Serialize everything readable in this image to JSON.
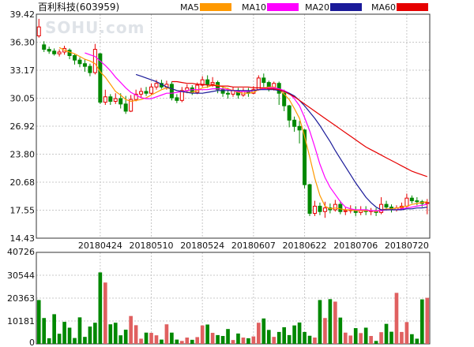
{
  "stock": {
    "name": "百利科技",
    "code": "(603959)"
  },
  "watermark": "SOHU.com",
  "legend": [
    {
      "label": "MA5",
      "color": "#ff9900"
    },
    {
      "label": "MA10",
      "color": "#ff00ff"
    },
    {
      "label": "MA20",
      "color": "#1a1a99"
    },
    {
      "label": "MA60",
      "color": "#e60000"
    }
  ],
  "colors": {
    "up": "#e60000",
    "down": "#008800",
    "grid": "#c8c8c8",
    "axis": "#333333",
    "vol_up": "#e06060",
    "vol_down": "#008800"
  },
  "chart_data": [
    {
      "type": "candlestick",
      "ylim": [
        14.43,
        39.42
      ],
      "y_ticks": [
        "39.42",
        "36.30",
        "33.17",
        "30.05",
        "26.92",
        "23.80",
        "20.68",
        "17.55",
        "14.43"
      ],
      "x_tick_labels": [
        {
          "label": "20180424",
          "index": 12
        },
        {
          "label": "20180510",
          "index": 22
        },
        {
          "label": "20180524",
          "index": 32
        },
        {
          "label": "20180607",
          "index": 42
        },
        {
          "label": "20180622",
          "index": 52
        },
        {
          "label": "20180706",
          "index": 62
        },
        {
          "label": "20180720",
          "index": 72
        }
      ],
      "candles": [
        [
          37.0,
          38.0,
          38.9,
          36.8
        ],
        [
          36.0,
          35.5,
          36.4,
          35.2
        ],
        [
          35.5,
          35.3,
          35.8,
          35.0
        ],
        [
          35.3,
          35.0,
          35.6,
          34.8
        ],
        [
          35.0,
          35.2,
          35.5,
          34.7
        ],
        [
          35.2,
          35.6,
          35.9,
          34.9
        ],
        [
          35.4,
          34.8,
          35.6,
          34.4
        ],
        [
          34.8,
          34.3,
          35.0,
          33.8
        ],
        [
          34.3,
          33.9,
          34.6,
          33.5
        ],
        [
          33.9,
          33.6,
          34.4,
          33.0
        ],
        [
          33.6,
          32.9,
          33.9,
          32.5
        ],
        [
          32.9,
          35.5,
          36.1,
          32.7
        ],
        [
          35.0,
          29.6,
          35.1,
          29.4
        ],
        [
          29.6,
          30.2,
          31.0,
          29.3
        ],
        [
          30.2,
          29.7,
          30.5,
          29.3
        ],
        [
          29.7,
          30.0,
          30.6,
          29.4
        ],
        [
          30.0,
          29.4,
          30.6,
          28.9
        ],
        [
          29.4,
          28.6,
          30.3,
          28.3
        ],
        [
          28.6,
          29.9,
          30.4,
          28.5
        ],
        [
          29.9,
          30.5,
          31.0,
          29.7
        ],
        [
          30.5,
          30.8,
          31.2,
          30.1
        ],
        [
          30.8,
          30.6,
          31.3,
          30.3
        ],
        [
          30.6,
          31.3,
          31.7,
          30.4
        ],
        [
          31.3,
          31.7,
          32.1,
          31.0
        ],
        [
          31.7,
          31.3,
          32.1,
          31.1
        ],
        [
          31.3,
          31.6,
          32.0,
          31.0
        ],
        [
          31.6,
          30.1,
          31.9,
          29.8
        ],
        [
          30.1,
          29.8,
          30.5,
          29.5
        ],
        [
          29.8,
          30.9,
          31.3,
          29.6
        ],
        [
          30.9,
          31.2,
          31.6,
          30.6
        ],
        [
          31.2,
          30.7,
          31.5,
          30.4
        ],
        [
          30.7,
          31.5,
          31.8,
          30.5
        ],
        [
          31.5,
          32.1,
          32.5,
          31.3
        ],
        [
          32.1,
          31.6,
          32.6,
          31.2
        ],
        [
          31.6,
          31.8,
          32.4,
          31.3
        ],
        [
          31.8,
          31.0,
          32.0,
          30.6
        ],
        [
          31.0,
          30.6,
          31.4,
          30.2
        ],
        [
          30.6,
          30.5,
          31.2,
          30.0
        ],
        [
          30.5,
          30.9,
          31.3,
          30.2
        ],
        [
          30.9,
          30.4,
          31.2,
          30.0
        ],
        [
          30.4,
          30.8,
          31.2,
          30.2
        ],
        [
          30.8,
          30.6,
          31.2,
          30.2
        ],
        [
          30.6,
          31.0,
          31.4,
          30.5
        ],
        [
          31.0,
          32.3,
          32.6,
          30.9
        ],
        [
          32.3,
          31.8,
          32.8,
          31.3
        ],
        [
          31.8,
          31.2,
          32.0,
          30.8
        ],
        [
          31.2,
          31.7,
          31.9,
          30.9
        ],
        [
          31.7,
          30.6,
          31.9,
          29.3
        ],
        [
          30.6,
          29.2,
          31.0,
          28.6
        ],
        [
          29.2,
          27.6,
          29.3,
          26.8
        ],
        [
          27.6,
          26.9,
          28.0,
          26.3
        ],
        [
          26.9,
          26.5,
          27.5,
          25.0
        ],
        [
          26.5,
          20.4,
          26.6,
          20.0
        ],
        [
          20.4,
          17.2,
          20.5,
          16.9
        ],
        [
          17.2,
          18.0,
          18.6,
          16.9
        ],
        [
          18.0,
          17.4,
          18.4,
          17.0
        ],
        [
          17.4,
          17.8,
          18.5,
          16.7
        ],
        [
          17.8,
          17.6,
          18.3,
          17.2
        ],
        [
          17.6,
          18.2,
          18.7,
          17.4
        ],
        [
          18.2,
          17.4,
          18.6,
          17.1
        ],
        [
          17.4,
          17.5,
          17.9,
          17.0
        ],
        [
          17.5,
          17.6,
          18.1,
          17.2
        ],
        [
          17.6,
          17.3,
          18.0,
          16.9
        ],
        [
          17.3,
          17.6,
          18.0,
          17.0
        ],
        [
          17.6,
          17.4,
          18.0,
          17.0
        ],
        [
          17.4,
          17.5,
          17.8,
          17.0
        ],
        [
          17.5,
          17.3,
          17.8,
          16.9
        ],
        [
          17.3,
          18.2,
          19.0,
          17.1
        ],
        [
          18.2,
          17.9,
          18.6,
          17.5
        ],
        [
          17.9,
          17.6,
          18.2,
          17.3
        ],
        [
          17.6,
          17.8,
          18.1,
          17.4
        ],
        [
          17.8,
          18.0,
          18.4,
          17.6
        ],
        [
          18.0,
          18.9,
          19.4,
          17.8
        ],
        [
          18.9,
          18.6,
          19.2,
          18.3
        ],
        [
          18.6,
          18.5,
          19.0,
          18.1
        ],
        [
          18.5,
          18.3,
          18.7,
          17.9
        ],
        [
          18.3,
          18.4,
          18.8,
          17.1
        ]
      ],
      "ma5": [
        null,
        null,
        null,
        null,
        35.7,
        35.4,
        35.2,
        35.0,
        34.7,
        34.4,
        34.2,
        33.9,
        33.0,
        32.4,
        31.6,
        30.8,
        30.4,
        29.9,
        29.7,
        29.8,
        29.9,
        30.1,
        30.4,
        30.7,
        31.0,
        31.2,
        31.1,
        30.9,
        30.8,
        30.7,
        30.7,
        30.9,
        31.2,
        31.3,
        31.5,
        31.5,
        31.3,
        31.1,
        30.9,
        30.7,
        30.6,
        30.6,
        30.7,
        31.0,
        31.2,
        31.3,
        31.3,
        31.0,
        30.5,
        29.9,
        28.9,
        27.8,
        25.8,
        23.5,
        21.1,
        19.2,
        18.0,
        17.7,
        17.8,
        17.7,
        17.6,
        17.6,
        17.5,
        17.5,
        17.5,
        17.5,
        17.4,
        17.6,
        17.7,
        17.7,
        17.8,
        17.9,
        18.0,
        18.2,
        18.3,
        18.4,
        18.5
      ],
      "ma10": [
        null,
        null,
        null,
        null,
        null,
        null,
        null,
        null,
        null,
        35.1,
        34.9,
        34.7,
        34.2,
        33.7,
        33.1,
        32.4,
        31.8,
        31.2,
        30.7,
        30.4,
        30.1,
        30.0,
        30.0,
        30.2,
        30.4,
        30.6,
        30.6,
        30.7,
        30.8,
        30.9,
        31.0,
        31.0,
        31.0,
        31.0,
        31.1,
        31.1,
        31.1,
        31.0,
        30.9,
        30.8,
        30.8,
        30.8,
        30.9,
        31.0,
        31.1,
        31.2,
        31.2,
        31.1,
        30.9,
        30.6,
        30.0,
        29.2,
        27.9,
        26.4,
        24.6,
        22.7,
        21.2,
        20.1,
        19.3,
        18.5,
        17.9,
        17.7,
        17.6,
        17.6,
        17.6,
        17.5,
        17.5,
        17.5,
        17.6,
        17.6,
        17.6,
        17.7,
        17.8,
        17.9,
        18.0,
        18.1,
        18.2
      ],
      "ma20": [
        null,
        null,
        null,
        null,
        null,
        null,
        null,
        null,
        null,
        null,
        null,
        null,
        null,
        null,
        null,
        null,
        null,
        null,
        null,
        32.7,
        32.5,
        32.3,
        32.1,
        31.9,
        31.6,
        31.3,
        31.1,
        30.9,
        30.8,
        30.7,
        30.6,
        30.6,
        30.6,
        30.7,
        30.8,
        30.9,
        30.9,
        30.9,
        30.9,
        30.9,
        30.9,
        30.9,
        30.9,
        31.0,
        31.0,
        31.0,
        31.0,
        30.9,
        30.8,
        30.6,
        30.3,
        29.8,
        29.2,
        28.5,
        27.8,
        27.0,
        26.1,
        25.2,
        24.2,
        23.3,
        22.4,
        21.5,
        20.6,
        19.8,
        19.0,
        18.4,
        17.9,
        17.6,
        17.6,
        17.6,
        17.6,
        17.6,
        17.7,
        17.7,
        17.8,
        17.8,
        17.9
      ],
      "ma60": [
        null,
        null,
        null,
        null,
        null,
        null,
        null,
        null,
        null,
        null,
        null,
        null,
        null,
        null,
        null,
        null,
        null,
        null,
        null,
        null,
        null,
        null,
        null,
        null,
        null,
        null,
        31.9,
        31.9,
        31.8,
        31.7,
        31.7,
        31.6,
        31.6,
        31.5,
        31.5,
        31.4,
        31.4,
        31.4,
        31.3,
        31.3,
        31.3,
        31.3,
        31.2,
        31.2,
        31.2,
        31.1,
        31.1,
        31.0,
        30.8,
        30.5,
        30.2,
        29.8,
        29.4,
        29.0,
        28.6,
        28.2,
        27.8,
        27.4,
        27.0,
        26.6,
        26.2,
        25.8,
        25.4,
        25.0,
        24.6,
        24.3,
        24.0,
        23.7,
        23.4,
        23.1,
        22.8,
        22.5,
        22.2,
        21.9,
        21.7,
        21.5,
        21.3
      ]
    },
    {
      "type": "bar",
      "title": "volume",
      "ylim": [
        0,
        40726
      ],
      "y_ticks": [
        "40726",
        "30544",
        "20363",
        "10181",
        "0"
      ],
      "values": [
        19500,
        11500,
        2500,
        13200,
        4500,
        9800,
        7200,
        2600,
        11800,
        3100,
        7700,
        9400,
        31800,
        27300,
        8700,
        9400,
        3800,
        6300,
        12400,
        8300,
        2300,
        5000,
        4900,
        3800,
        1900,
        8700,
        5000,
        1900,
        1300,
        2800,
        1800,
        3000,
        8200,
        8600,
        4900,
        3900,
        3500,
        6600,
        1700,
        4600,
        2800,
        2500,
        3300,
        9400,
        11300,
        6200,
        3100,
        5300,
        7400,
        3900,
        8200,
        9500,
        5300,
        3600,
        2800,
        19500,
        11500,
        19900,
        18800,
        11700,
        5000,
        3700,
        7000,
        4800,
        7200,
        3500,
        1300,
        5200,
        8900,
        5400,
        22700,
        5300,
        9700,
        4300,
        2300,
        19800,
        20500
      ],
      "up": [
        false,
        false,
        false,
        false,
        false,
        false,
        false,
        false,
        false,
        false,
        false,
        false,
        false,
        true,
        false,
        false,
        false,
        false,
        true,
        true,
        true,
        false,
        true,
        true,
        false,
        true,
        false,
        false,
        true,
        true,
        false,
        true,
        true,
        false,
        true,
        false,
        false,
        false,
        true,
        false,
        true,
        false,
        true,
        true,
        false,
        false,
        true,
        false,
        false,
        false,
        false,
        false,
        false,
        false,
        true,
        false,
        true,
        false,
        true,
        false,
        true,
        true,
        false,
        true,
        false,
        true,
        false,
        true,
        false,
        false,
        true,
        true,
        true,
        false,
        false,
        false,
        true
      ]
    }
  ]
}
